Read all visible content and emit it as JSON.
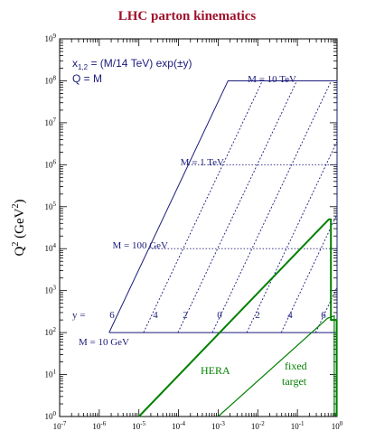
{
  "chart_data": {
    "type": "line",
    "title": "LHC parton kinematics",
    "ylabel": "Q",
    "ylabel_sup": "2",
    "ylabel_unit": "(GeV",
    "ylabel_unit_sup": "2",
    "ylabel_close": ")",
    "xscale": "log",
    "yscale": "log",
    "xlim": [
      1e-07,
      1
    ],
    "ylim": [
      1,
      1000000000.0
    ],
    "x_ticks": [
      {
        "base": "10",
        "exp": "-7"
      },
      {
        "base": "10",
        "exp": "-6"
      },
      {
        "base": "10",
        "exp": "-5"
      },
      {
        "base": "10",
        "exp": "-4"
      },
      {
        "base": "10",
        "exp": "-3"
      },
      {
        "base": "10",
        "exp": "-2"
      },
      {
        "base": "10",
        "exp": "-1"
      },
      {
        "base": "10",
        "exp": "0"
      }
    ],
    "y_ticks": [
      {
        "base": "10",
        "exp": "0"
      },
      {
        "base": "10",
        "exp": "1"
      },
      {
        "base": "10",
        "exp": "2"
      },
      {
        "base": "10",
        "exp": "3"
      },
      {
        "base": "10",
        "exp": "4"
      },
      {
        "base": "10",
        "exp": "5"
      },
      {
        "base": "10",
        "exp": "6"
      },
      {
        "base": "10",
        "exp": "7"
      },
      {
        "base": "10",
        "exp": "8"
      },
      {
        "base": "10",
        "exp": "9"
      }
    ],
    "formula_x": "x",
    "formula_x_sub": "1,2",
    "formula_x_rest": " = (M/14 TeV) exp(±y)",
    "formula_q": "Q = M",
    "y_prefix": "y =",
    "mass_labels": [
      {
        "text": "M = 10 TeV",
        "M_GeV": 10000
      },
      {
        "text": "M = 1 TeV",
        "M_GeV": 1000
      },
      {
        "text": "M = 100 GeV",
        "M_GeV": 100
      },
      {
        "text": "M = 10 GeV",
        "M_GeV": 10
      }
    ],
    "rapidity_labels": [
      "6",
      "4",
      "2",
      "0",
      "2",
      "4",
      "6"
    ],
    "rapidity_values": [
      -6,
      -4,
      -2,
      0,
      2,
      4,
      6
    ],
    "sqrt_s_GeV": 14000,
    "region_labels": {
      "hera": "HERA",
      "fixed_1": "fixed",
      "fixed_2": "target"
    },
    "hera_boundary": [
      [
        1e-05,
        1
      ],
      [
        0.62,
        50000
      ],
      [
        0.7,
        50000
      ],
      [
        0.7,
        200
      ],
      [
        0.98,
        200
      ],
      [
        0.98,
        1
      ]
    ],
    "fixed_target_boundary": [
      [
        0.001,
        1
      ],
      [
        0.58,
        220
      ],
      [
        0.85,
        250
      ],
      [
        0.85,
        1
      ]
    ],
    "colors": {
      "lhc": "#1b1b7a",
      "hera": "#008000",
      "title": "#a0102a",
      "axis": "#000000"
    }
  }
}
